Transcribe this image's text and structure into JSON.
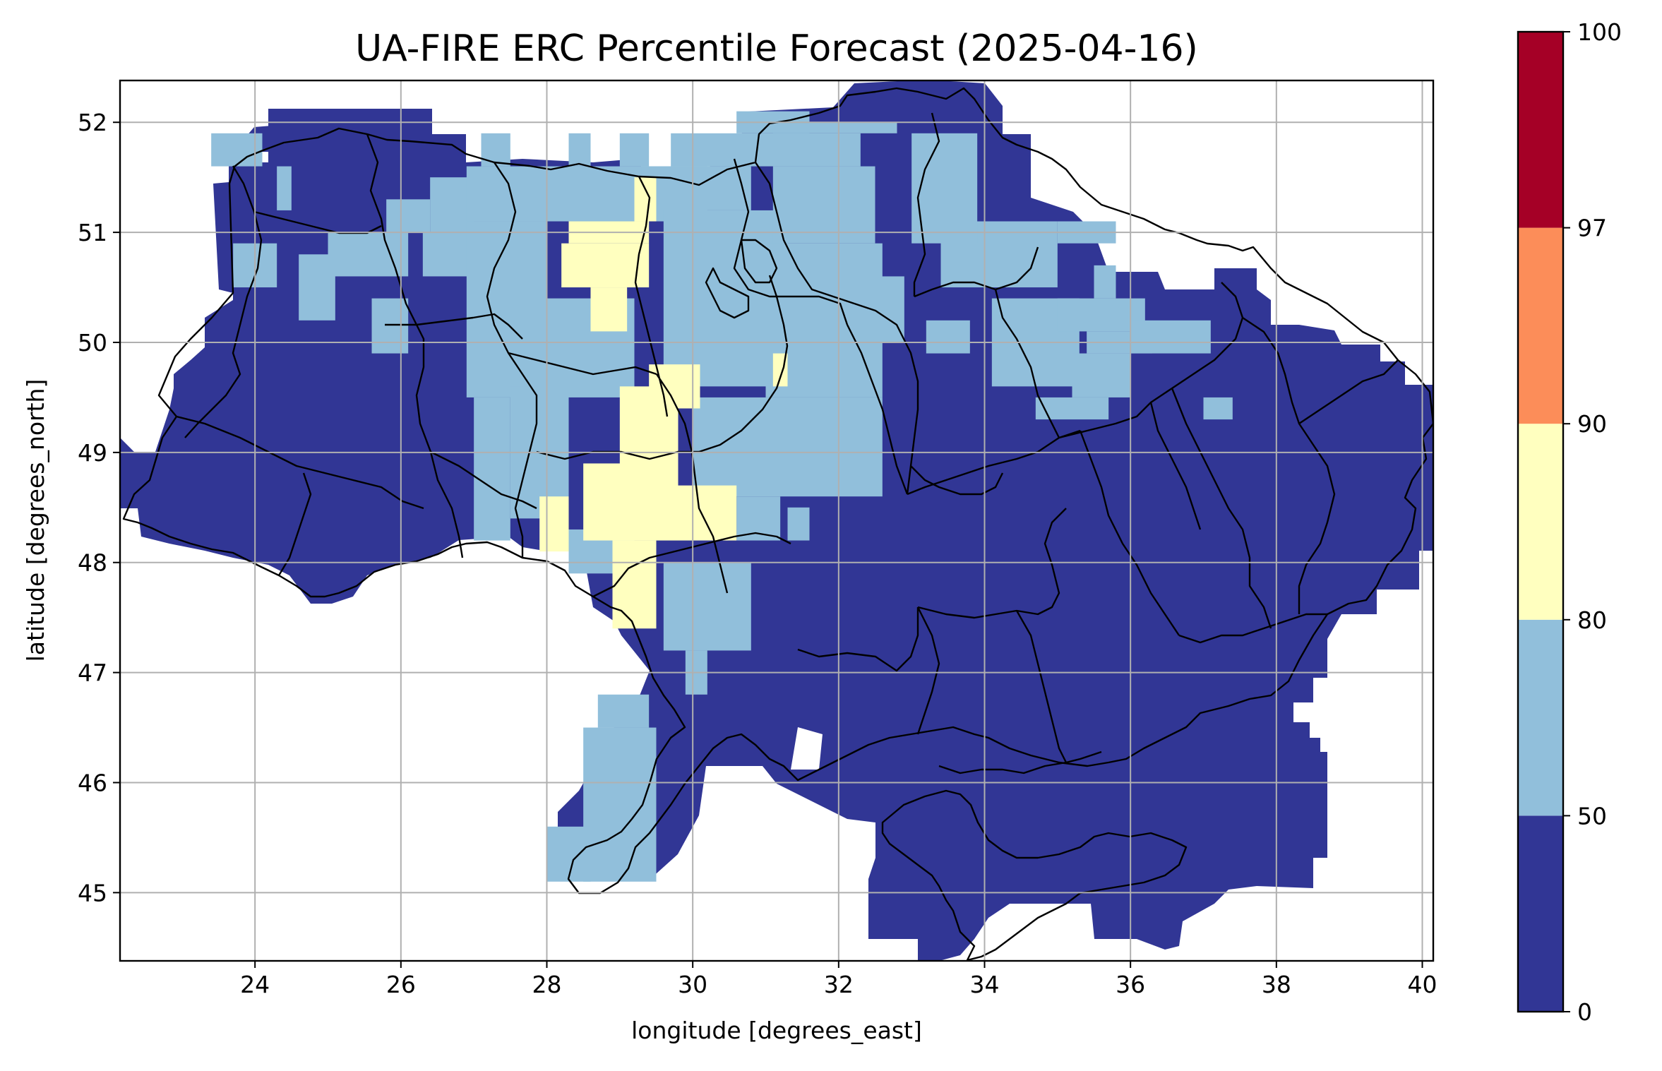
{
  "title": "UA-FIRE ERC Percentile Forecast (2025-04-16)",
  "xlabel": "longitude [degrees_east]",
  "ylabel": "latitude [degrees_north]",
  "map": {
    "lon_range": [
      22.15,
      40.15
    ],
    "lat_range": [
      44.38,
      52.38
    ],
    "x_ticks": [
      24,
      26,
      28,
      30,
      32,
      34,
      36,
      38,
      40
    ],
    "y_ticks": [
      45,
      46,
      47,
      48,
      49,
      50,
      51,
      52
    ],
    "grid": true,
    "cell_size_deg": 0.25,
    "colors": [
      "#313695",
      "#91bfdb",
      "#ffffbf",
      "#fc8d59",
      "#a50026"
    ],
    "boundary_color": "#000000"
  },
  "colorbar": {
    "placement": "right",
    "bounds": [
      0,
      50,
      80,
      90,
      97,
      100
    ],
    "tick_labels": [
      "0",
      "50",
      "80",
      "90",
      "97",
      "100"
    ]
  },
  "regions": {
    "class_1_50_80": [
      [
        23.4,
        51.6,
        24.1,
        51.9
      ],
      [
        24.3,
        51.2,
        24.5,
        51.6
      ],
      [
        23.7,
        50.5,
        24.3,
        50.9
      ],
      [
        24.6,
        50.2,
        25.1,
        50.8
      ],
      [
        25.0,
        50.6,
        26.1,
        51.0
      ],
      [
        25.8,
        51.0,
        26.4,
        51.3
      ],
      [
        25.6,
        49.9,
        26.1,
        50.4
      ],
      [
        26.3,
        50.6,
        27.3,
        51.0
      ],
      [
        26.4,
        51.0,
        27.0,
        51.5
      ],
      [
        27.1,
        51.6,
        27.5,
        51.9
      ],
      [
        26.9,
        51.1,
        30.2,
        51.6
      ],
      [
        26.9,
        49.5,
        28.0,
        51.1
      ],
      [
        27.0,
        48.2,
        27.5,
        49.5
      ],
      [
        27.5,
        48.4,
        28.3,
        49.6
      ],
      [
        27.9,
        49.5,
        29.2,
        50.4
      ],
      [
        28.3,
        51.6,
        28.6,
        51.9
      ],
      [
        29.0,
        51.6,
        29.4,
        51.9
      ],
      [
        29.3,
        51.2,
        30.8,
        51.6
      ],
      [
        29.6,
        49.6,
        31.3,
        51.2
      ],
      [
        29.7,
        51.6,
        32.3,
        51.9
      ],
      [
        30.6,
        51.9,
        31.6,
        52.1
      ],
      [
        31.1,
        51.9,
        32.8,
        52.0
      ],
      [
        31.1,
        50.9,
        32.5,
        51.6
      ],
      [
        31.0,
        49.5,
        32.6,
        50.9
      ],
      [
        32.4,
        50.0,
        32.9,
        50.6
      ],
      [
        30.0,
        48.6,
        32.6,
        49.5
      ],
      [
        30.6,
        48.2,
        31.2,
        48.6
      ],
      [
        31.3,
        48.2,
        31.6,
        48.5
      ],
      [
        28.3,
        47.9,
        29.2,
        48.3
      ],
      [
        29.6,
        47.2,
        30.8,
        48.0
      ],
      [
        29.9,
        46.8,
        30.2,
        47.2
      ],
      [
        28.7,
        46.5,
        29.4,
        46.8
      ],
      [
        28.5,
        45.1,
        29.5,
        46.5
      ],
      [
        28.0,
        45.1,
        28.6,
        45.6
      ],
      [
        33.4,
        50.5,
        35.0,
        51.1
      ],
      [
        33.0,
        50.9,
        33.9,
        51.9
      ],
      [
        33.2,
        49.9,
        33.8,
        50.2
      ],
      [
        34.1,
        49.6,
        35.3,
        50.4
      ],
      [
        35.0,
        50.9,
        35.8,
        51.1
      ],
      [
        35.5,
        50.4,
        35.8,
        50.7
      ],
      [
        35.0,
        50.1,
        36.2,
        50.4
      ],
      [
        35.4,
        49.9,
        36.3,
        50.1
      ],
      [
        35.2,
        49.5,
        36.0,
        49.9
      ],
      [
        34.7,
        49.3,
        35.7,
        49.5
      ],
      [
        36.0,
        49.9,
        37.1,
        50.2
      ],
      [
        37.0,
        49.3,
        37.4,
        49.5
      ]
    ],
    "class_2_80_90": [
      [
        28.2,
        50.5,
        29.4,
        50.9
      ],
      [
        28.6,
        50.1,
        29.1,
        50.5
      ],
      [
        29.0,
        48.2,
        29.8,
        49.6
      ],
      [
        28.5,
        48.2,
        29.2,
        48.9
      ],
      [
        29.8,
        48.2,
        30.6,
        48.7
      ],
      [
        27.9,
        48.1,
        28.3,
        48.6
      ],
      [
        28.9,
        47.4,
        29.5,
        48.2
      ],
      [
        29.4,
        49.4,
        30.1,
        49.8
      ],
      [
        31.1,
        49.6,
        31.3,
        49.9
      ],
      [
        28.3,
        50.9,
        29.4,
        51.1
      ],
      [
        29.2,
        51.1,
        29.5,
        51.5
      ]
    ]
  }
}
